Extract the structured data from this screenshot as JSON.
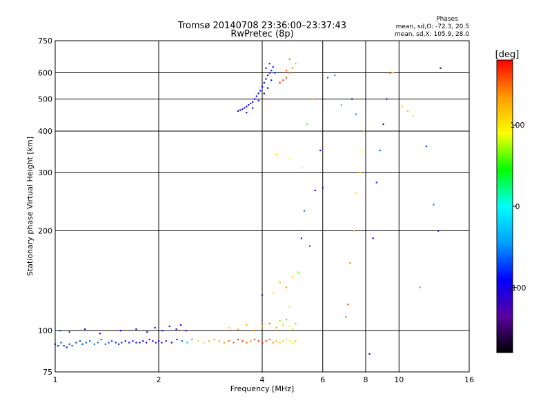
{
  "chart_data": {
    "type": "scatter",
    "title": "Tromsø 20140708 23:36:00–23:37:43",
    "subtitle": "RwPretec (8p)",
    "xlabel": "Frequency [MHz]",
    "ylabel": "Stationary phase Virtual Height [km]",
    "x_scale": "log2",
    "y_scale": "log",
    "xlim": [
      1,
      16
    ],
    "ylim": [
      75,
      750
    ],
    "x_ticks": [
      1,
      2,
      4,
      6,
      8,
      10,
      16
    ],
    "y_ticks": [
      75,
      100,
      200,
      300,
      400,
      500,
      600,
      750
    ],
    "x_gridlines": [
      2,
      4,
      6,
      8,
      10
    ],
    "y_gridlines": [
      100,
      200,
      300,
      400,
      500,
      600
    ],
    "grid": true,
    "stats": {
      "heading": "Phases",
      "line1": "mean, sd,O: -72.3, 20.5",
      "line2": "mean, sd,X: 105.9, 28.0"
    },
    "colorbar": {
      "label": "[deg]",
      "range": [
        -180,
        180
      ],
      "ticks": [
        100,
        0,
        -100
      ],
      "colormap": [
        "#000000",
        "#5a00a0",
        "#0000ff",
        "#00a0ff",
        "#00ffff",
        "#00ff00",
        "#ffff00",
        "#ff9900",
        "#ff0000"
      ]
    },
    "series": [
      {
        "x": [
          1.0,
          1.02,
          1.04,
          1.06,
          1.08,
          1.1,
          1.12,
          1.15,
          1.18,
          1.2,
          1.23,
          1.26,
          1.3,
          1.33,
          1.36,
          1.4,
          1.43,
          1.46,
          1.5,
          1.53,
          1.56,
          1.6,
          1.64,
          1.68,
          1.72,
          1.76,
          1.8,
          1.84,
          1.88,
          1.92,
          1.96,
          2.0,
          2.04
        ],
        "y": [
          91,
          90,
          92,
          90,
          89,
          91,
          90,
          92,
          93,
          91,
          92,
          93,
          91,
          92,
          94,
          91,
          92,
          93,
          92,
          91,
          92,
          93,
          92,
          93,
          92,
          92,
          93,
          92,
          94,
          93,
          92,
          93,
          92
        ],
        "phase": [
          -80,
          -85,
          -70,
          -75,
          -78,
          -72,
          -68,
          -74,
          -66,
          -70,
          -65,
          -72,
          -60,
          -62,
          -65,
          -68,
          -70,
          -72,
          -75,
          -80,
          -82,
          -85,
          -88,
          -90,
          -92,
          -95,
          -98,
          -100,
          -102,
          -104,
          -105,
          -106,
          -105
        ]
      },
      {
        "x": [
          1.03,
          1.1,
          1.22,
          1.35,
          1.55,
          1.72,
          1.85,
          1.95,
          2.05,
          2.15,
          2.25,
          2.32,
          2.4
        ],
        "y": [
          100,
          99,
          101,
          98,
          100,
          101,
          99,
          102,
          100,
          103,
          101,
          104,
          100
        ],
        "phase": [
          -75,
          -80,
          -88,
          -92,
          -96,
          -100,
          -105,
          -110,
          -108,
          -112,
          -115,
          -110,
          -118
        ]
      },
      {
        "x": [
          2.1,
          2.18,
          2.26,
          2.34,
          2.42,
          2.5,
          2.6,
          2.7,
          2.8,
          2.9,
          3.0,
          3.1,
          3.2,
          3.3,
          3.4,
          3.5,
          3.6,
          3.7,
          3.8,
          3.9,
          4.0,
          4.1,
          4.2,
          4.3,
          4.4,
          4.5,
          4.6,
          4.7,
          4.8,
          4.9,
          5.0
        ],
        "y": [
          93,
          92,
          94,
          93,
          92,
          94,
          93,
          92,
          93,
          94,
          93,
          92,
          93,
          92,
          94,
          93,
          92,
          93,
          94,
          93,
          92,
          93,
          94,
          92,
          93,
          92,
          93,
          94,
          93,
          92,
          93
        ],
        "phase": [
          -95,
          -90,
          -85,
          -60,
          -20,
          40,
          80,
          110,
          120,
          125,
          130,
          140,
          150,
          155,
          160,
          165,
          150,
          140,
          160,
          165,
          170,
          160,
          150,
          140,
          130,
          120,
          110,
          100,
          90,
          80,
          70
        ]
      },
      {
        "x": [
          3.2,
          3.4,
          3.6,
          3.8,
          4.0,
          4.2,
          4.4,
          4.6,
          4.8,
          4.9,
          5.0,
          4.7,
          4.5
        ],
        "y": [
          102,
          101,
          104,
          100,
          103,
          105,
          102,
          104,
          103,
          101,
          105,
          108,
          107
        ],
        "phase": [
          110,
          120,
          130,
          140,
          120,
          150,
          130,
          110,
          90,
          80,
          60,
          50,
          70
        ]
      },
      {
        "x": [
          4.0,
          4.3,
          4.5,
          4.7,
          4.9,
          5.1,
          4.8
        ],
        "y": [
          128,
          130,
          140,
          135,
          145,
          150,
          118
        ],
        "phase": [
          -80,
          100,
          120,
          140,
          110,
          60,
          80
        ]
      },
      {
        "x": [
          3.4,
          3.45,
          3.5,
          3.55,
          3.6,
          3.65,
          3.7,
          3.75,
          3.8,
          3.85,
          3.9,
          3.95,
          4.0,
          4.05,
          4.1,
          4.15,
          4.2,
          4.25,
          4.3,
          3.6,
          3.75,
          3.9,
          4.05,
          4.15,
          4.25,
          4.35,
          4.1,
          4.2
        ],
        "y": [
          460,
          463,
          466,
          470,
          475,
          480,
          485,
          490,
          500,
          510,
          520,
          530,
          545,
          560,
          575,
          590,
          600,
          610,
          625,
          455,
          470,
          495,
          520,
          540,
          570,
          600,
          620,
          640
        ],
        "phase": [
          -108,
          -110,
          -106,
          -104,
          -102,
          -105,
          -100,
          -98,
          -96,
          -95,
          -94,
          -92,
          -90,
          -88,
          -86,
          -84,
          -82,
          -80,
          -78,
          -110,
          -100,
          -96,
          -92,
          -90,
          -86,
          -84,
          -80,
          -78
        ]
      },
      {
        "x": [
          4.5,
          4.6,
          4.7,
          4.8,
          4.9,
          5.0,
          4.7,
          4.8
        ],
        "y": [
          560,
          570,
          580,
          600,
          620,
          640,
          610,
          660
        ],
        "phase": [
          170,
          165,
          160,
          150,
          140,
          130,
          155,
          145
        ]
      },
      {
        "x": [
          4.4,
          4.8,
          5.2,
          5.4,
          5.6
        ],
        "y": [
          340,
          330,
          310,
          420,
          500
        ],
        "phase": [
          110,
          90,
          80,
          60,
          120
        ]
      },
      {
        "x": [
          5.2,
          5.3,
          5.5,
          5.7,
          5.9,
          6.0,
          6.2,
          6.5,
          6.8
        ],
        "y": [
          190,
          230,
          180,
          265,
          350,
          270,
          580,
          590,
          480
        ],
        "phase": [
          -80,
          -60,
          -70,
          -90,
          -100,
          -110,
          -60,
          -40,
          -20
        ]
      },
      {
        "x": [
          7.0,
          7.1,
          7.2,
          7.4,
          7.5,
          7.7,
          7.8,
          7.9,
          7.5,
          7.3
        ],
        "y": [
          110,
          120,
          160,
          200,
          260,
          300,
          350,
          400,
          450,
          500
        ],
        "phase": [
          150,
          160,
          140,
          120,
          100,
          110,
          90,
          130,
          -50,
          -120
        ]
      },
      {
        "x": [
          8.2,
          8.4,
          8.6,
          8.8,
          9.0,
          9.2,
          9.4,
          9.6
        ],
        "y": [
          85,
          190,
          280,
          350,
          420,
          500,
          600,
          600
        ],
        "phase": [
          -110,
          -90,
          -80,
          -70,
          -100,
          -95,
          170,
          100
        ]
      },
      {
        "x": [
          10.2,
          10.6,
          11.0,
          11.5,
          12.0,
          12.6,
          13.0,
          13.2
        ],
        "y": [
          475,
          460,
          445,
          135,
          360,
          240,
          200,
          620
        ],
        "phase": [
          110,
          120,
          100,
          150,
          -70,
          -60,
          -90,
          -150
        ]
      }
    ]
  }
}
